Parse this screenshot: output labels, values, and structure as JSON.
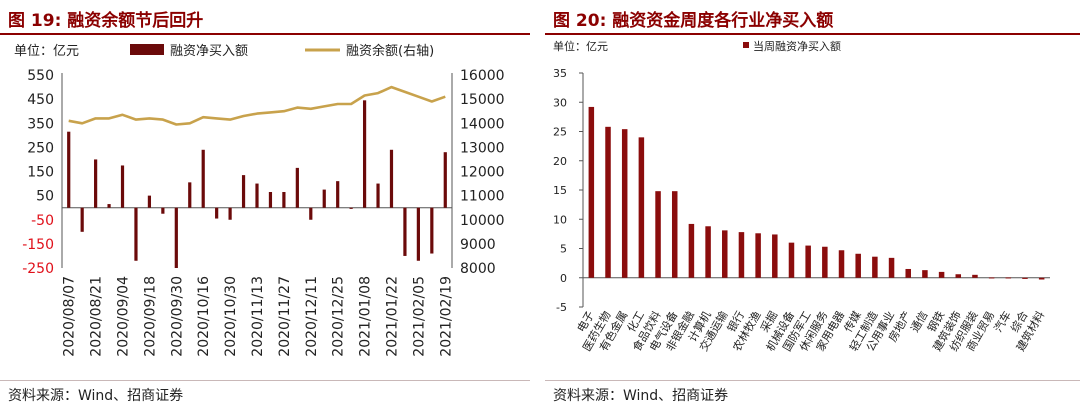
{
  "chart_data": [
    {
      "type": "bar+line",
      "title": "图 19:  融资余额节后回升",
      "unit_label": "单位：亿元",
      "legend": {
        "bar": "融资净买入额",
        "line": "融资余额(右轴)"
      },
      "source": "资料来源：Wind、招商证券",
      "categories": [
        "2020/08/07",
        "",
        "2020/08/21",
        "",
        "2020/09/04",
        "",
        "2020/09/18",
        "",
        "2020/09/30",
        "",
        "2020/10/16",
        "",
        "2020/10/30",
        "",
        "2020/11/13",
        "",
        "2020/11/27",
        "",
        "2020/12/11",
        "",
        "2020/12/25",
        "",
        "2021/01/08",
        "",
        "2021/01/22",
        "",
        "2021/02/05",
        "",
        "2021/02/19"
      ],
      "x_tick_labels": [
        "2020/08/07",
        "2020/08/21",
        "2020/09/04",
        "2020/09/18",
        "2020/09/30",
        "2020/10/16",
        "2020/10/30",
        "2020/11/13",
        "2020/11/27",
        "2020/12/11",
        "2020/12/25",
        "2021/01/08",
        "2021/01/22",
        "2021/02/05",
        "2021/02/19"
      ],
      "bar_values": [
        315,
        -100,
        200,
        15,
        175,
        -220,
        50,
        -25,
        -250,
        105,
        240,
        -45,
        -50,
        135,
        100,
        65,
        65,
        165,
        -50,
        75,
        110,
        -5,
        445,
        100,
        240,
        -200,
        -220,
        -190,
        230
      ],
      "line_values": [
        14100,
        14000,
        14200,
        14200,
        14350,
        14150,
        14200,
        14150,
        13950,
        14000,
        14250,
        14200,
        14150,
        14300,
        14400,
        14450,
        14500,
        14650,
        14600,
        14700,
        14800,
        14800,
        15150,
        15250,
        15500,
        15300,
        15100,
        14900,
        15100
      ],
      "y_left": {
        "min": -250,
        "max": 550,
        "ticks": [
          "-250",
          "-150",
          "-50",
          "50",
          "150",
          "250",
          "350",
          "450",
          "550"
        ]
      },
      "y_right": {
        "min": 8000,
        "max": 16000,
        "ticks": [
          "8000",
          "9000",
          "10000",
          "11000",
          "12000",
          "13000",
          "14000",
          "15000",
          "16000"
        ]
      },
      "colors": {
        "bar": "#6b0a0a",
        "line": "#c8a24c",
        "negative_tick": "#e0101a",
        "title": "#8b0000"
      }
    },
    {
      "type": "bar",
      "title": "图 20:  融资资金周度各行业净买入额",
      "unit_label": "单位：亿元",
      "legend": {
        "bar": "当周融资净买入额"
      },
      "source": "资料来源：Wind、招商证券",
      "categories": [
        "电子",
        "医药生物",
        "有色金属",
        "化工",
        "食品饮料",
        "电气设备",
        "非银金融",
        "计算机",
        "交通运输",
        "银行",
        "农林牧渔",
        "采掘",
        "机械设备",
        "国防军工",
        "休闲服务",
        "家用电器",
        "传媒",
        "轻工制造",
        "公用事业",
        "房地产",
        "通信",
        "钢铁",
        "建筑装饰",
        "纺织服装",
        "商业贸易",
        "汽车",
        "综合",
        "建筑材料"
      ],
      "values": [
        29.2,
        25.8,
        25.4,
        24.0,
        14.8,
        14.8,
        9.2,
        8.8,
        8.1,
        7.8,
        7.6,
        7.4,
        6.0,
        5.5,
        5.3,
        4.7,
        4.1,
        3.6,
        3.4,
        1.5,
        1.3,
        1.0,
        0.6,
        0.5,
        0.05,
        0.05,
        -0.2,
        -0.3
      ],
      "y": {
        "min": -5,
        "max": 35,
        "ticks": [
          "-5",
          "0",
          "5",
          "10",
          "15",
          "20",
          "25",
          "30",
          "35"
        ]
      },
      "colors": {
        "bar": "#8b0d0d",
        "title": "#8b0000"
      }
    }
  ]
}
